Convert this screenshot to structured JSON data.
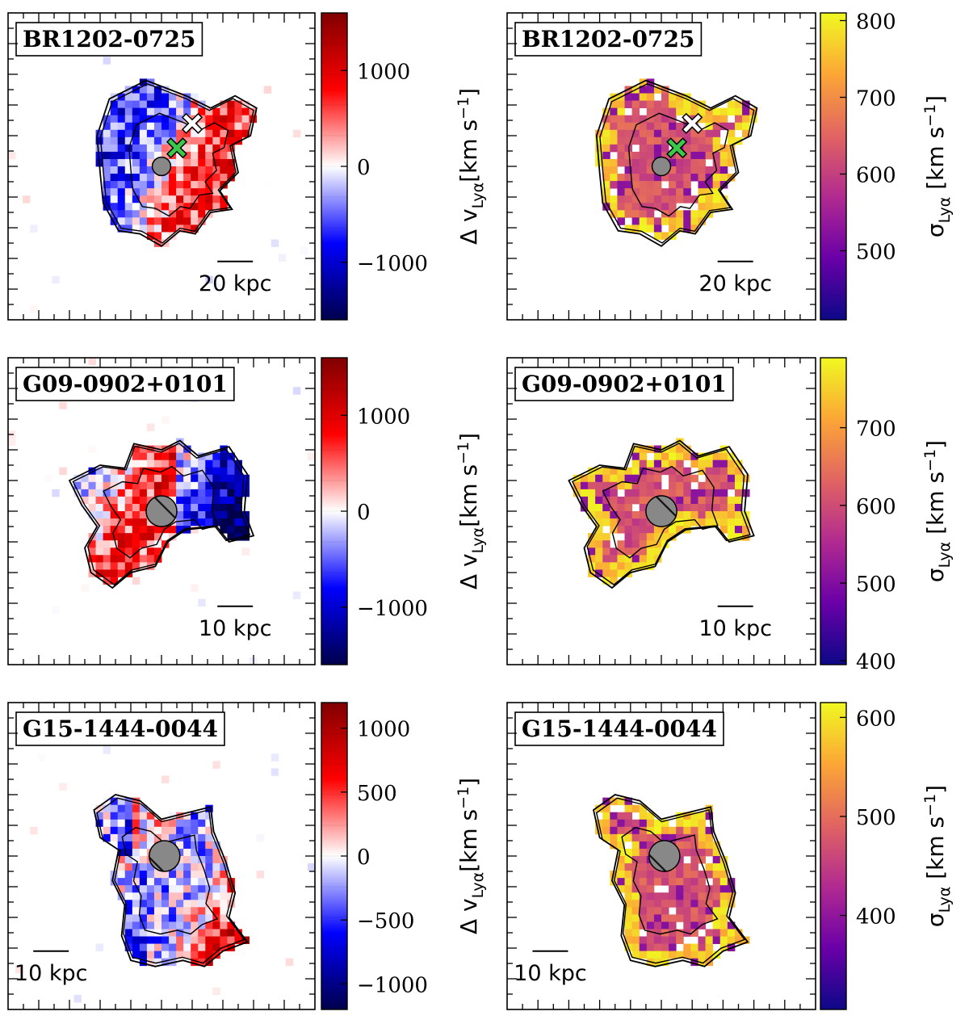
{
  "chart_data": [
    {
      "type": "heatmap",
      "label": "BR1202-0725",
      "quantity": "velocity",
      "colormap": "seismic (blue-white-red)",
      "scalebar": "20 kpc",
      "colorbar_label": "Δ v_Lyα [km s^-1]",
      "cbar_range": [
        -1600,
        1600
      ],
      "cbar_ticks": [
        {
          "v": 1000,
          "t": "1000"
        },
        {
          "v": 0,
          "t": "0"
        },
        {
          "v": -1000,
          "t": "−1000"
        }
      ],
      "markers": [
        "grey-hatched-circle",
        "green-cross",
        "white-cross"
      ]
    },
    {
      "type": "heatmap",
      "label": "BR1202-0725",
      "quantity": "dispersion",
      "colormap": "plasma",
      "scalebar": "20 kpc",
      "colorbar_label": "σ_Lyα [km s^-1]",
      "cbar_range": [
        410,
        810
      ],
      "cbar_ticks": [
        {
          "v": 800,
          "t": "800"
        },
        {
          "v": 700,
          "t": "700"
        },
        {
          "v": 600,
          "t": "600"
        },
        {
          "v": 500,
          "t": "500"
        }
      ],
      "markers": [
        "grey-hatched-circle",
        "green-cross",
        "white-cross"
      ]
    },
    {
      "type": "heatmap",
      "label": "G09-0902+0101",
      "quantity": "velocity",
      "colormap": "seismic (blue-white-red)",
      "scalebar": "10 kpc",
      "colorbar_label": "Δ v_Lyα [km s^-1]",
      "cbar_range": [
        -1600,
        1600
      ],
      "cbar_ticks": [
        {
          "v": 1000,
          "t": "1000"
        },
        {
          "v": 0,
          "t": "0"
        },
        {
          "v": -1000,
          "t": "−1000"
        }
      ],
      "markers": [
        "grey-hatched-circle"
      ]
    },
    {
      "type": "heatmap",
      "label": "G09-0902+0101",
      "quantity": "dispersion",
      "colormap": "plasma",
      "scalebar": "10 kpc",
      "colorbar_label": "σ_Lyα [km s^-1]",
      "cbar_range": [
        395,
        790
      ],
      "cbar_ticks": [
        {
          "v": 700,
          "t": "700"
        },
        {
          "v": 600,
          "t": "600"
        },
        {
          "v": 500,
          "t": "500"
        },
        {
          "v": 400,
          "t": "400"
        }
      ],
      "markers": [
        "grey-hatched-circle"
      ]
    },
    {
      "type": "heatmap",
      "label": "G15-1444-0044",
      "quantity": "velocity",
      "colormap": "seismic (blue-white-red)",
      "scalebar": "10 kpc",
      "colorbar_label": "Δ v_Lyα [km s^-1]",
      "cbar_range": [
        -1200,
        1200
      ],
      "cbar_ticks": [
        {
          "v": 1000,
          "t": "1000"
        },
        {
          "v": 500,
          "t": "500"
        },
        {
          "v": 0,
          "t": "0"
        },
        {
          "v": -500,
          "t": "−500"
        },
        {
          "v": -1000,
          "t": "−1000"
        }
      ],
      "markers": [
        "grey-hatched-circle"
      ]
    },
    {
      "type": "heatmap",
      "label": "G15-1444-0044",
      "quantity": "dispersion",
      "colormap": "plasma",
      "scalebar": "10 kpc",
      "colorbar_label": "σ_Lyα [km s^-1]",
      "cbar_range": [
        305,
        615
      ],
      "cbar_ticks": [
        {
          "v": 600,
          "t": "600"
        },
        {
          "v": 500,
          "t": "500"
        },
        {
          "v": 400,
          "t": "400"
        }
      ],
      "markers": [
        "grey-hatched-circle"
      ]
    }
  ]
}
